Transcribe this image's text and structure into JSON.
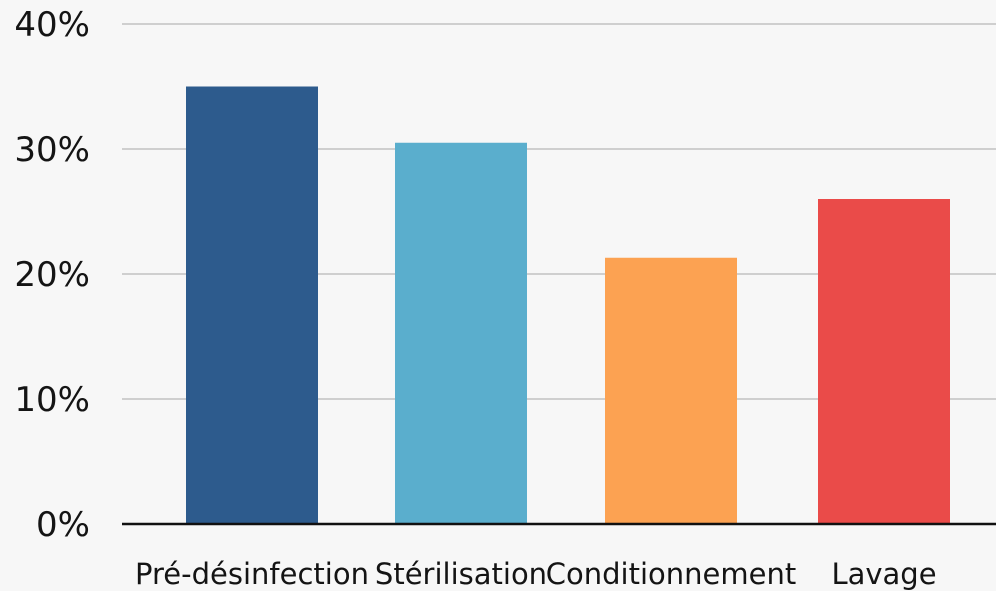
{
  "chart_data": {
    "type": "bar",
    "categories": [
      "Pré-désinfection",
      "Stérilisation",
      "Conditionnement",
      "Lavage"
    ],
    "values": [
      35,
      30.5,
      21.3,
      26
    ],
    "colors": [
      "#2d5b8d",
      "#5aaecd",
      "#fca252",
      "#ea4b49"
    ],
    "y_ticks": [
      "0%",
      "10%",
      "20%",
      "30%",
      "40%"
    ],
    "ylim": [
      0,
      40
    ],
    "grid": true,
    "title": "",
    "xlabel": "",
    "ylabel": ""
  }
}
